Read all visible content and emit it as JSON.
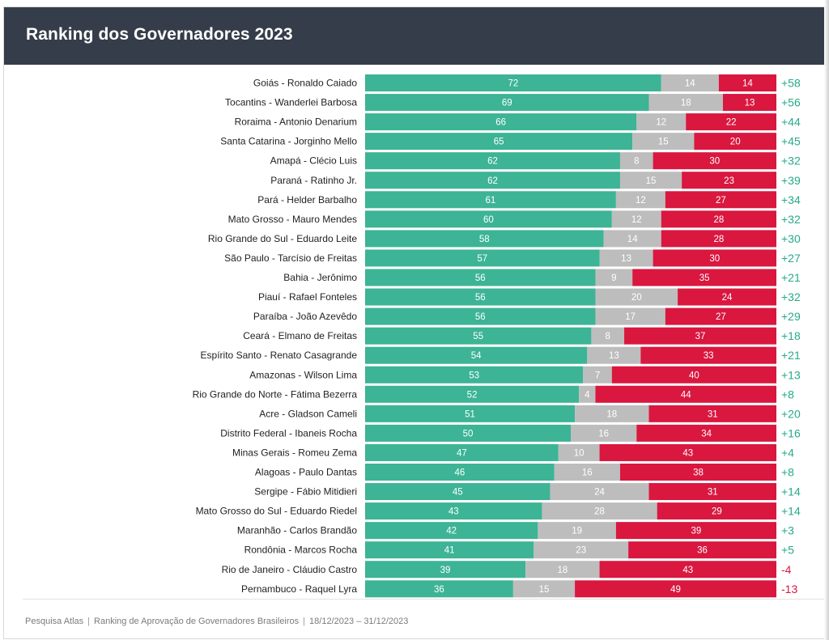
{
  "header": {
    "title": "Ranking dos Governadores 2023"
  },
  "colors": {
    "approve": "#3cb495",
    "neutral": "#bdbdbd",
    "disapprove": "#d9173f",
    "positive_net": "#27a98a",
    "negative_net": "#d9173f"
  },
  "chart_data": {
    "type": "bar",
    "orientation": "horizontal",
    "stacked": true,
    "title": "Ranking dos Governadores 2023",
    "categories": [
      "Goiás - Ronaldo Caiado",
      "Tocantins - Wanderlei Barbosa",
      "Roraima - Antonio Denarium",
      "Santa Catarina - Jorginho Mello",
      "Amapá - Clécio Luis",
      "Paraná - Ratinho Jr.",
      "Pará - Helder Barbalho",
      "Mato Grosso - Mauro Mendes",
      "Rio Grande do Sul - Eduardo Leite",
      "São Paulo - Tarcísio de Freitas",
      "Bahia - Jerônimo",
      "Piauí - Rafael Fonteles",
      "Paraíba - João Azevêdo",
      "Ceará - Elmano de Freitas",
      "Espírito Santo - Renato Casagrande",
      "Amazonas - Wilson Lima",
      "Rio Grande do Norte - Fátima Bezerra",
      "Acre - Gladson Cameli",
      "Distrito Federal - Ibaneis Rocha",
      "Minas Gerais - Romeu Zema",
      "Alagoas - Paulo Dantas",
      "Sergipe - Fábio Mitidieri",
      "Mato Grosso do Sul - Eduardo Riedel",
      "Maranhão - Carlos Brandão",
      "Rondônia - Marcos Rocha",
      "Rio de Janeiro - Cláudio Castro",
      "Pernambuco - Raquel Lyra"
    ],
    "series": [
      {
        "values": [
          72,
          69,
          66,
          65,
          62,
          62,
          61,
          60,
          58,
          57,
          56,
          56,
          56,
          55,
          54,
          53,
          52,
          51,
          50,
          47,
          46,
          45,
          43,
          42,
          41,
          39,
          36
        ]
      },
      {
        "values": [
          14,
          18,
          12,
          15,
          8,
          15,
          12,
          12,
          14,
          13,
          9,
          20,
          17,
          8,
          13,
          7,
          4,
          18,
          16,
          10,
          16,
          24,
          28,
          19,
          23,
          18,
          15
        ]
      },
      {
        "values": [
          14,
          13,
          22,
          20,
          30,
          23,
          27,
          28,
          28,
          30,
          35,
          24,
          27,
          37,
          33,
          40,
          44,
          31,
          34,
          43,
          38,
          31,
          29,
          39,
          36,
          43,
          49
        ]
      }
    ],
    "net_labels": [
      "+58",
      "+56",
      "+44",
      "+45",
      "+32",
      "+39",
      "+34",
      "+32",
      "+30",
      "+27",
      "+21",
      "+32",
      "+29",
      "+18",
      "+21",
      "+13",
      "+8",
      "+20",
      "+16",
      "+4",
      "+8",
      "+14",
      "+14",
      "+3",
      "+5",
      "-4",
      "-13"
    ],
    "xlim": [
      0,
      100
    ],
    "grid": false,
    "legend": "none"
  },
  "footer": {
    "source": "Pesquisa Atlas",
    "description": "Ranking de Aprovação de Governadores Brasileiros",
    "period": "18/12/2023 – 31/12/2023"
  }
}
